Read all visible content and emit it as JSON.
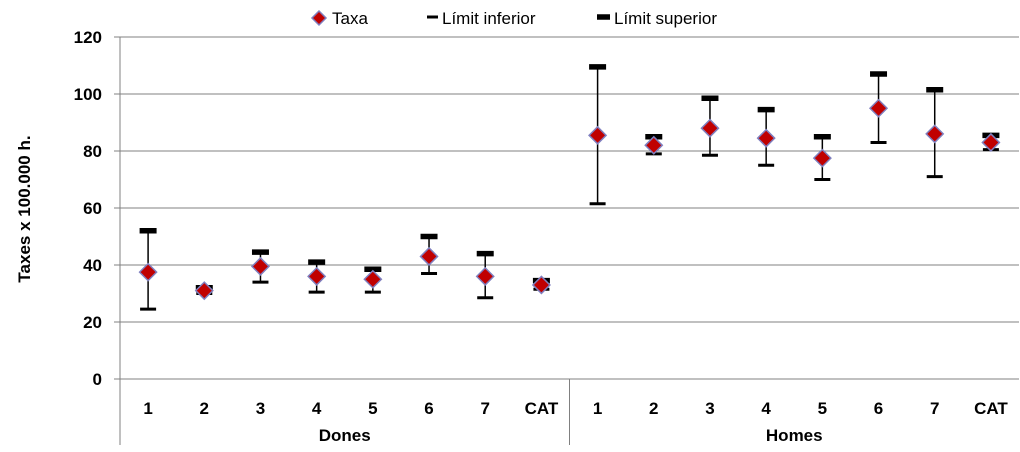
{
  "chart_data": {
    "type": "scatter",
    "title": "",
    "ylabel": "Taxes x 100.000 h.",
    "ylim": [
      0,
      120
    ],
    "yticks": [
      0,
      20,
      40,
      60,
      80,
      100,
      120
    ],
    "grid": true,
    "legend_position": "top",
    "legend": [
      "Taxa",
      "Límit inferior",
      "Límit superior"
    ],
    "colors": {
      "marker": "#c00000",
      "marker_edge": "#7f7fbf",
      "limit": "#000000",
      "grid": "#808080"
    },
    "groups": [
      {
        "label": "Dones",
        "categories": [
          "1",
          "2",
          "3",
          "4",
          "5",
          "6",
          "7",
          "CAT"
        ]
      },
      {
        "label": "Homes",
        "categories": [
          "1",
          "2",
          "3",
          "4",
          "5",
          "6",
          "7",
          "CAT"
        ]
      }
    ],
    "series": [
      {
        "name": "Taxa",
        "values": [
          37.5,
          31,
          39.5,
          36,
          35,
          43,
          36,
          33,
          85.5,
          82,
          88,
          84.5,
          77.5,
          95,
          86,
          83
        ]
      },
      {
        "name": "Límit inferior",
        "values": [
          24.5,
          30,
          34,
          30.5,
          30.5,
          37,
          28.5,
          31.5,
          61.5,
          79,
          78.5,
          75,
          70,
          83,
          71,
          80.5
        ]
      },
      {
        "name": "Límit superior",
        "values": [
          52,
          32,
          44.5,
          41,
          38.5,
          50,
          44,
          34.5,
          109.5,
          85,
          98.5,
          94.5,
          85,
          107,
          101.5,
          85.5
        ]
      }
    ]
  }
}
